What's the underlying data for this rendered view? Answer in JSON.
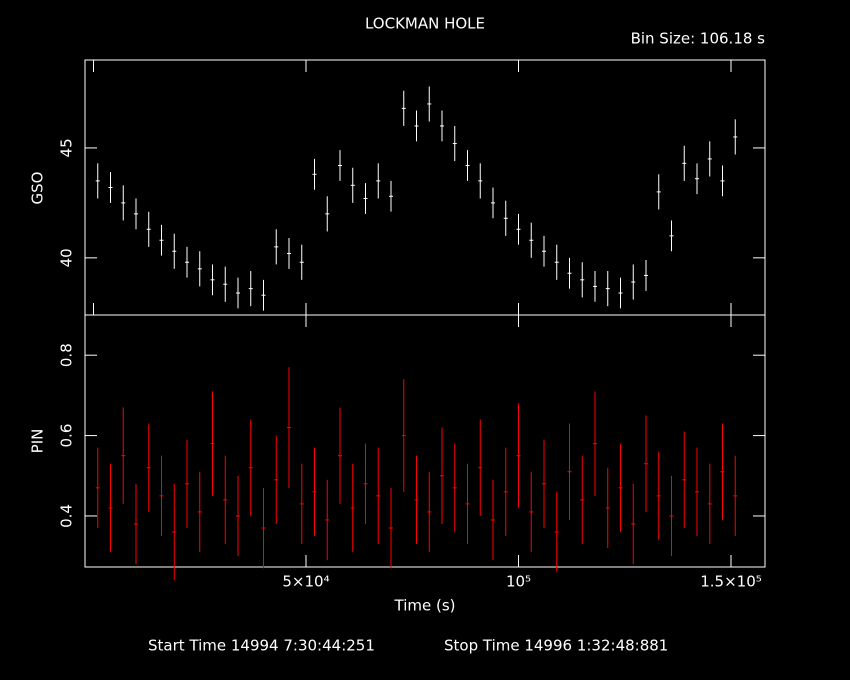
{
  "chart_data": [
    {
      "type": "errorbar",
      "title": "LOCKMAN HOLE",
      "bin_size": "Bin Size: 106.18 s",
      "ylabel": "GSO",
      "color": "#ffffff",
      "xlim": [
        -2000,
        158000
      ],
      "xticks": [
        0,
        50000,
        100000,
        150000
      ],
      "ylim": [
        37.4,
        49
      ],
      "yticks": [
        40,
        45
      ],
      "x": [
        1000,
        4000,
        7000,
        10000,
        13000,
        16000,
        19000,
        22000,
        25000,
        28000,
        31000,
        34000,
        37000,
        40000,
        43000,
        46000,
        49000,
        52000,
        55000,
        58000,
        61000,
        64000,
        67000,
        70000,
        73000,
        76000,
        79000,
        82000,
        85000,
        88000,
        91000,
        94000,
        97000,
        100000,
        103000,
        106000,
        109000,
        112000,
        115000,
        118000,
        121000,
        124000,
        127000,
        130000,
        133000,
        136000,
        139000,
        142000,
        145000,
        148000,
        151000
      ],
      "values": [
        43.5,
        43.2,
        42.5,
        42.0,
        41.3,
        40.8,
        40.3,
        39.8,
        39.5,
        39.0,
        38.8,
        38.4,
        38.6,
        38.3,
        40.5,
        40.2,
        39.8,
        43.8,
        42.0,
        44.2,
        43.3,
        42.7,
        43.5,
        42.8,
        46.8,
        46.0,
        47.0,
        46.0,
        45.2,
        44.2,
        43.5,
        42.5,
        41.8,
        41.3,
        40.8,
        40.3,
        39.8,
        39.3,
        39.0,
        38.7,
        38.6,
        38.4,
        38.9,
        39.2,
        43.0,
        41.0,
        44.3,
        43.6,
        44.5,
        43.5,
        45.5
      ],
      "errors": [
        0.8,
        0.7,
        0.8,
        0.7,
        0.8,
        0.7,
        0.8,
        0.7,
        0.8,
        0.7,
        0.8,
        0.7,
        0.8,
        0.7,
        0.8,
        0.7,
        0.8,
        0.7,
        0.8,
        0.7,
        0.8,
        0.7,
        0.8,
        0.7,
        0.8,
        0.7,
        0.8,
        0.7,
        0.8,
        0.7,
        0.8,
        0.7,
        0.8,
        0.7,
        0.8,
        0.7,
        0.8,
        0.7,
        0.8,
        0.7,
        0.8,
        0.7,
        0.8,
        0.7,
        0.8,
        0.7,
        0.8,
        0.7,
        0.8,
        0.7,
        0.8
      ]
    },
    {
      "type": "errorbar",
      "ylabel": "PIN",
      "xlabel": "Time (s)",
      "color": "#ff0000",
      "start_time": "Start Time 14994  7:30:44:251",
      "stop_time": "Stop Time 14996  1:32:48:881",
      "xlim": [
        -2000,
        158000
      ],
      "xticks": [
        {
          "value": 50000,
          "label": "5×10⁴"
        },
        {
          "value": 100000,
          "label": "10⁵"
        },
        {
          "value": 150000,
          "label": "1.5×10⁵"
        }
      ],
      "ylim": [
        0.273,
        0.9
      ],
      "yticks": [
        0.4,
        0.6,
        0.8
      ],
      "x": [
        1000,
        4000,
        7000,
        10000,
        13000,
        16000,
        19000,
        22000,
        25000,
        28000,
        31000,
        34000,
        37000,
        40000,
        43000,
        46000,
        49000,
        52000,
        55000,
        58000,
        61000,
        64000,
        67000,
        70000,
        73000,
        76000,
        79000,
        82000,
        85000,
        88000,
        91000,
        94000,
        97000,
        100000,
        103000,
        106000,
        109000,
        112000,
        115000,
        118000,
        121000,
        124000,
        127000,
        130000,
        133000,
        136000,
        139000,
        142000,
        145000,
        148000,
        151000
      ],
      "values": [
        0.47,
        0.42,
        0.55,
        0.38,
        0.52,
        0.45,
        0.36,
        0.48,
        0.41,
        0.58,
        0.44,
        0.4,
        0.52,
        0.37,
        0.49,
        0.62,
        0.43,
        0.46,
        0.39,
        0.55,
        0.42,
        0.48,
        0.45,
        0.37,
        0.6,
        0.44,
        0.41,
        0.5,
        0.47,
        0.43,
        0.52,
        0.39,
        0.46,
        0.55,
        0.41,
        0.48,
        0.36,
        0.51,
        0.44,
        0.58,
        0.42,
        0.47,
        0.38,
        0.53,
        0.45,
        0.4,
        0.49,
        0.46,
        0.43,
        0.51,
        0.45
      ],
      "errors": [
        0.1,
        0.11,
        0.12,
        0.1,
        0.11,
        0.1,
        0.12,
        0.11,
        0.1,
        0.13,
        0.11,
        0.1,
        0.12,
        0.1,
        0.11,
        0.15,
        0.1,
        0.11,
        0.1,
        0.12,
        0.11,
        0.1,
        0.12,
        0.1,
        0.14,
        0.11,
        0.1,
        0.12,
        0.11,
        0.1,
        0.12,
        0.1,
        0.11,
        0.13,
        0.1,
        0.11,
        0.1,
        0.12,
        0.11,
        0.13,
        0.1,
        0.11,
        0.1,
        0.12,
        0.11,
        0.1,
        0.12,
        0.11,
        0.1,
        0.12,
        0.1
      ]
    }
  ]
}
